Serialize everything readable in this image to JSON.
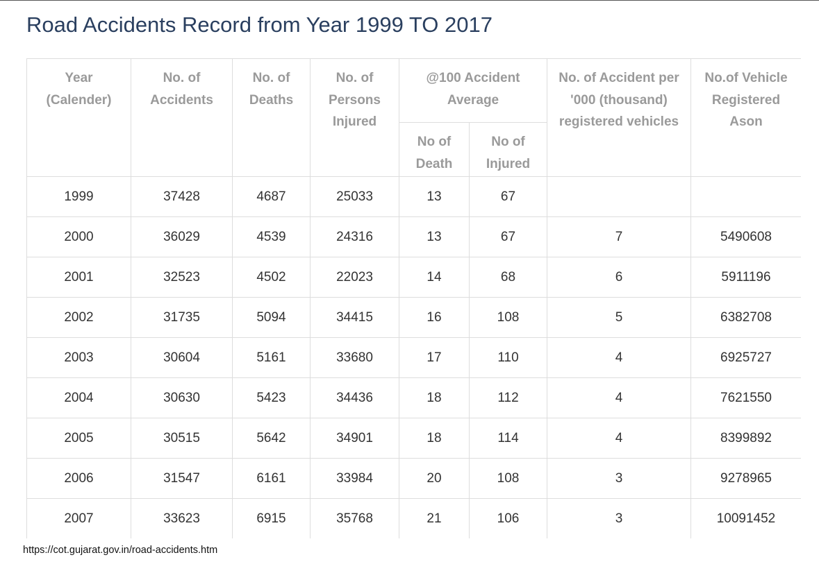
{
  "page": {
    "title": "Road Accidents Record from Year 1999 TO 2017",
    "source_url": "https://cot.gujarat.gov.in/road-accidents.htm"
  },
  "table": {
    "headers": {
      "year": "Year (Calender)",
      "accidents": "No. of Accidents",
      "deaths": "No. of Deaths",
      "injured": "No. of Persons Injured",
      "average_group": "@100 Accident Average",
      "avg_death": "No of Death",
      "avg_injured": "No of Injured",
      "per_thousand": "No. of Accident per '000 (thousand) registered vehicles",
      "vehicles": "No.of Vehicle Registered Ason"
    },
    "rows": [
      [
        "1999",
        "37428",
        "4687",
        "25033",
        "13",
        "67",
        "",
        ""
      ],
      [
        "2000",
        "36029",
        "4539",
        "24316",
        "13",
        "67",
        "7",
        "5490608"
      ],
      [
        "2001",
        "32523",
        "4502",
        "22023",
        "14",
        "68",
        "6",
        "5911196"
      ],
      [
        "2002",
        "31735",
        "5094",
        "34415",
        "16",
        "108",
        "5",
        "6382708"
      ],
      [
        "2003",
        "30604",
        "5161",
        "33680",
        "17",
        "110",
        "4",
        "6925727"
      ],
      [
        "2004",
        "30630",
        "5423",
        "34436",
        "18",
        "112",
        "4",
        "7621550"
      ],
      [
        "2005",
        "30515",
        "5642",
        "34901",
        "18",
        "114",
        "4",
        "8399892"
      ],
      [
        "2006",
        "31547",
        "6161",
        "33984",
        "20",
        "108",
        "3",
        "9278965"
      ],
      [
        "2007",
        "33623",
        "6915",
        "35768",
        "21",
        "106",
        "3",
        "10091452"
      ]
    ]
  }
}
